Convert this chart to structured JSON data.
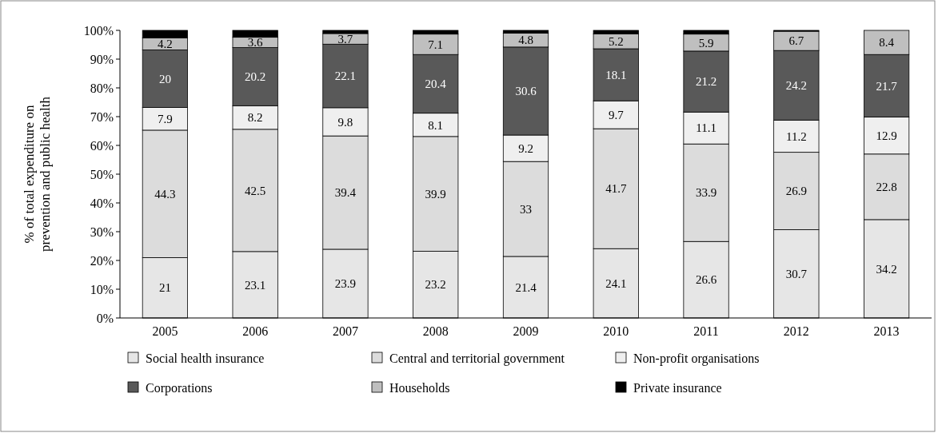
{
  "chart_data": {
    "type": "bar",
    "stacked": true,
    "ylabel": "% of total expenditure on prevention and public health",
    "categories": [
      "2005",
      "2006",
      "2007",
      "2008",
      "2009",
      "2010",
      "2011",
      "2012",
      "2013"
    ],
    "ylim": [
      0,
      100
    ],
    "yticks": [
      {
        "value": 0,
        "label": "0%"
      },
      {
        "value": 10,
        "label": "10%"
      },
      {
        "value": 20,
        "label": "20%"
      },
      {
        "value": 30,
        "label": "30%"
      },
      {
        "value": 40,
        "label": "40%"
      },
      {
        "value": 50,
        "label": "50%"
      },
      {
        "value": 60,
        "label": "60%"
      },
      {
        "value": 70,
        "label": "70%"
      },
      {
        "value": 80,
        "label": "80%"
      },
      {
        "value": 90,
        "label": "90%"
      },
      {
        "value": 100,
        "label": "100%"
      }
    ],
    "grid": false,
    "legend": "bottom",
    "series": [
      {
        "name": "Social health insurance",
        "color": "#e6e6e6",
        "values": [
          21,
          23.1,
          23.9,
          23.2,
          21.4,
          24.1,
          26.6,
          30.7,
          34.2
        ],
        "value_labels": [
          "21",
          "23.1",
          "23.9",
          "23.2",
          "21.4",
          "24.1",
          "26.6",
          "30.7",
          "34.2"
        ]
      },
      {
        "name": "Central and territorial government",
        "color": "#dcdcdc",
        "values": [
          44.3,
          42.5,
          39.4,
          39.9,
          33,
          41.7,
          33.9,
          26.9,
          22.8
        ],
        "value_labels": [
          "44.3",
          "42.5",
          "39.4",
          "39.9",
          "33",
          "41.7",
          "33.9",
          "26.9",
          "22.8"
        ]
      },
      {
        "name": "Non-profit organisations",
        "color": "#efefef",
        "values": [
          7.9,
          8.2,
          9.8,
          8.1,
          9.2,
          9.7,
          11.1,
          11.2,
          12.9
        ],
        "value_labels": [
          "7.9",
          "8.2",
          "9.8",
          "8.1",
          "9.2",
          "9.7",
          "11.1",
          "11.2",
          "12.9"
        ]
      },
      {
        "name": "Corporations",
        "color": "#595959",
        "values": [
          20,
          20.2,
          22.1,
          20.4,
          30.6,
          18.1,
          21.2,
          24.2,
          21.7
        ],
        "value_labels": [
          "20",
          "20.2",
          "22.1",
          "20.4",
          "30.6",
          "18.1",
          "21.2",
          "24.2",
          "21.7"
        ]
      },
      {
        "name": "Households",
        "color": "#bfbfbf",
        "values": [
          4.2,
          3.6,
          3.7,
          7.1,
          4.8,
          5.2,
          5.9,
          6.7,
          8.4
        ],
        "value_labels": [
          "4.2",
          "3.6",
          "3.7",
          "7.1",
          "4.8",
          "5.2",
          "5.9",
          "6.7",
          "8.4"
        ]
      },
      {
        "name": "Private insurance",
        "color": "#000000",
        "values": [
          2.6,
          2.4,
          1.1,
          1.3,
          1,
          1.2,
          1.3,
          0.3,
          0
        ]
      }
    ]
  }
}
